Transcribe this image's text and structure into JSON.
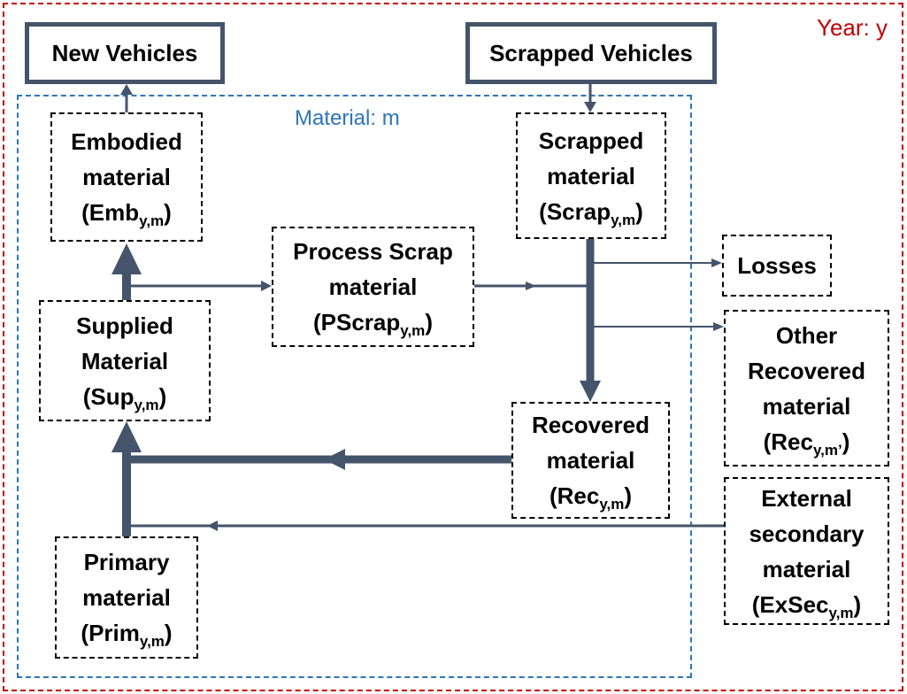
{
  "frames": {
    "year_label": "Year: y",
    "material_label": "Material: m"
  },
  "colors": {
    "year_frame": "#c00000",
    "material_frame": "#2e75b6",
    "arrow": "#44546a"
  },
  "boxes": {
    "new_vehicles": "New Vehicles",
    "scrapped_vehicles": "Scrapped Vehicles",
    "embodied": {
      "line1": "Embodied",
      "line2": "material",
      "sym_open": "(Emb",
      "sub": "y,m",
      "sym_close": ")"
    },
    "scrapped": {
      "line1": "Scrapped",
      "line2": "material",
      "sym_open": "(Scrap",
      "sub": "y,m",
      "sym_close": ")"
    },
    "process_scrap": {
      "line1": "Process Scrap",
      "line2": "material",
      "sym_open": "(PScrap",
      "sub": "y,m",
      "sym_close": ")"
    },
    "losses": "Losses",
    "other_recovered": {
      "line1": "Other",
      "line2": "Recovered",
      "line3": "material",
      "sym_open": "(Rec",
      "sub": "y,m’",
      "sym_close": ")"
    },
    "supplied": {
      "line1": "Supplied",
      "line2": "Material",
      "sym_open": "(Sup",
      "sub": "y,m",
      "sym_close": ")"
    },
    "recovered": {
      "line1": "Recovered",
      "line2": "material",
      "sym_open": "(Rec",
      "sub": "y,m",
      "sym_close": ")"
    },
    "external_secondary": {
      "line1": "External",
      "line2": "secondary",
      "line3": "material",
      "sym_open": "(ExSec",
      "sub": "y,m",
      "sym_close": ")"
    },
    "primary": {
      "line1": "Primary",
      "line2": "material",
      "sym_open": "(Prim",
      "sub": "y,m",
      "sym_close": ")"
    }
  }
}
